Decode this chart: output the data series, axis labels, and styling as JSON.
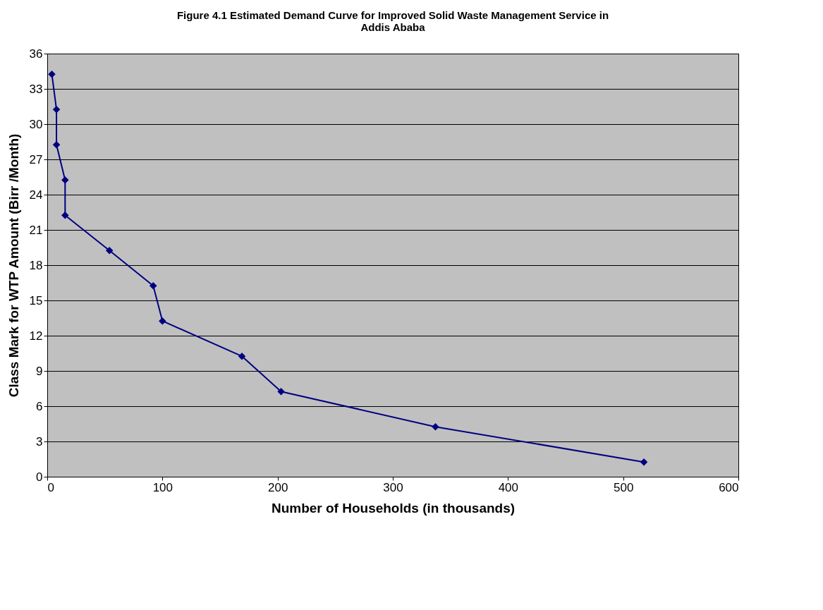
{
  "chart_data": {
    "type": "line",
    "title": [
      "Figure 4.1 Estimated Demand Curve for Improved Solid Waste Management Service in",
      "Addis Ababa"
    ],
    "xlabel": "Number of Households (in thousands)",
    "ylabel": "Class Mark for WTP Amount (Birr /Month)",
    "series": [
      {
        "color": "#000080",
        "x": [
          4,
          8,
          8,
          15.5,
          15.5,
          54,
          92,
          100,
          169,
          203,
          337,
          518
        ],
        "values": [
          34.25,
          31.25,
          28.25,
          25.25,
          22.25,
          19.25,
          16.25,
          13.25,
          10.25,
          7.25,
          4.25,
          1.25
        ]
      }
    ],
    "xlim": [
      0,
      600
    ],
    "xticks": [
      0,
      100,
      200,
      300,
      400,
      500,
      600
    ],
    "ylim": [
      0,
      36
    ],
    "yticks": [
      0,
      3,
      6,
      9,
      12,
      15,
      18,
      21,
      24,
      27,
      30,
      33,
      36
    ],
    "grid": "y",
    "marker": "diamond",
    "line_style": "solid"
  }
}
